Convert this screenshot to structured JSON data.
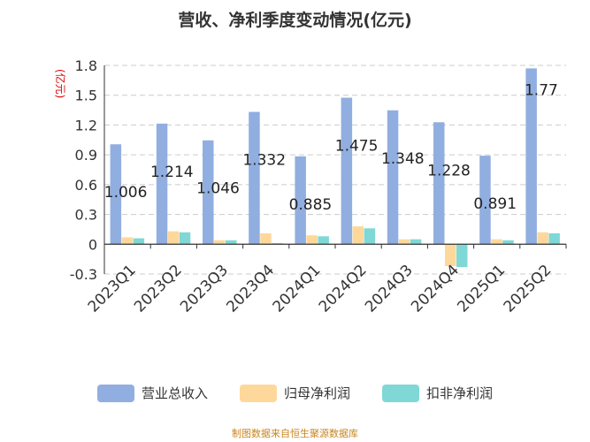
{
  "title": "营收、净利季度变动情况(亿元)",
  "source": "制图数据来自恒生聚源数据库",
  "colors": {
    "revenue": "#91aee0",
    "parent_profit": "#fed89a",
    "non_recurring_profit": "#7fd8d6",
    "grid": "#cccccc",
    "axis": "#333333",
    "unit_label": "#e00000"
  },
  "chart_data": {
    "type": "bar",
    "title": "营收、净利季度变动情况(亿元)",
    "ylabel": "(亿元)",
    "xlabel": "",
    "ylim": [
      -0.3,
      1.8
    ],
    "yticks": [
      "-0.3",
      "0",
      "0.3",
      "0.6",
      "0.9",
      "1.2",
      "1.5",
      "1.8"
    ],
    "ytick_values": [
      -0.3,
      0,
      0.3,
      0.6,
      0.9,
      1.2,
      1.5,
      1.8
    ],
    "grid": true,
    "legend_position": "bottom",
    "categories": [
      "2023Q1",
      "2023Q2",
      "2023Q3",
      "2023Q4",
      "2024Q1",
      "2024Q2",
      "2024Q3",
      "2024Q4",
      "2025Q1",
      "2025Q2"
    ],
    "series": [
      {
        "name": "营业总收入",
        "values": [
          1.006,
          1.214,
          1.046,
          1.332,
          0.885,
          1.475,
          1.348,
          1.228,
          0.891,
          1.77
        ],
        "labels": [
          "1.006",
          "1.214",
          "1.046",
          "1.332",
          "0.885",
          "1.475",
          "1.348",
          "1.228",
          "0.891",
          "1.77"
        ]
      },
      {
        "name": "归母净利润",
        "values": [
          0.07,
          0.13,
          0.04,
          0.11,
          0.09,
          0.18,
          0.05,
          -0.22,
          0.05,
          0.12
        ]
      },
      {
        "name": "扣非净利润",
        "values": [
          0.06,
          0.12,
          0.04,
          0.01,
          0.08,
          0.16,
          0.05,
          -0.23,
          0.04,
          0.11
        ]
      }
    ]
  }
}
